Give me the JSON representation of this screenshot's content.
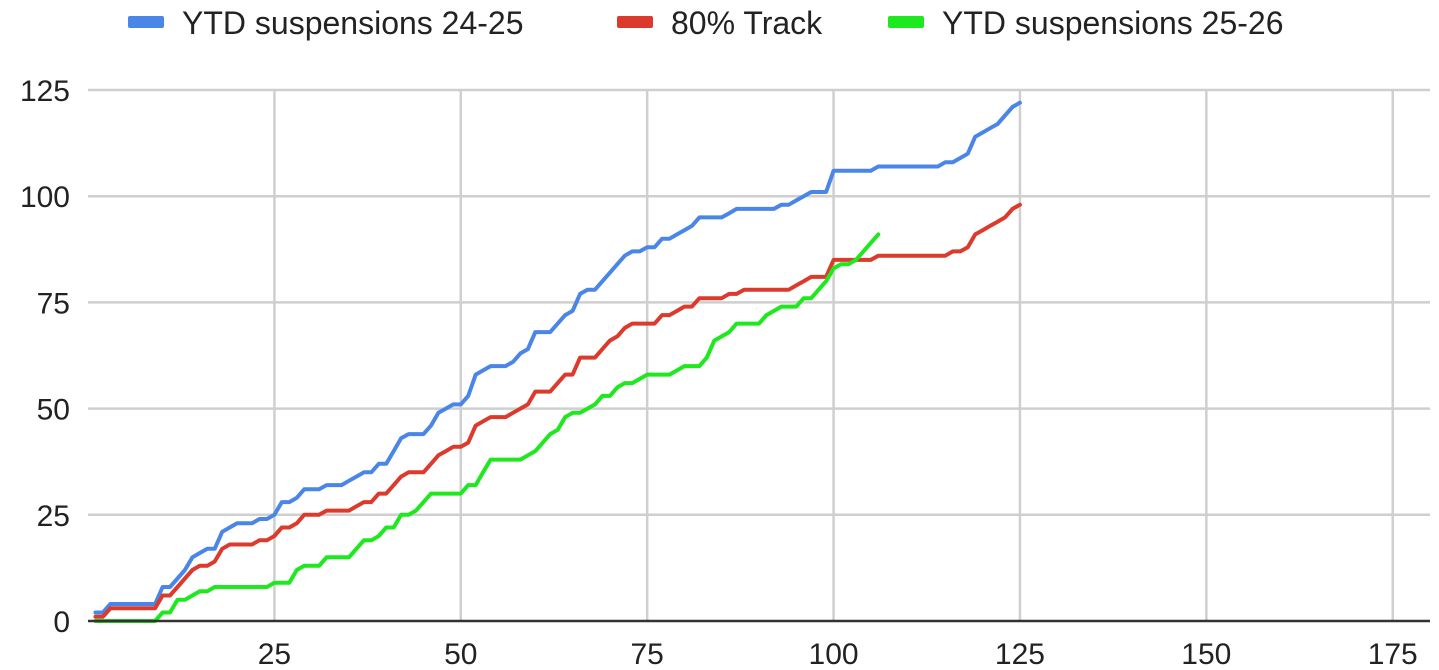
{
  "chart_data": {
    "type": "line",
    "title": "",
    "xlabel": "",
    "ylabel": "",
    "xlim": [
      0,
      180
    ],
    "ylim": [
      0,
      125
    ],
    "x_ticks": [
      25,
      50,
      75,
      100,
      125,
      150,
      175
    ],
    "y_ticks": [
      0,
      25,
      50,
      75,
      100,
      125
    ],
    "x_tick_labels": [
      "25",
      "50",
      "75",
      "100",
      "125",
      "150",
      "175"
    ],
    "y_tick_labels": [
      "0",
      "25",
      "50",
      "75",
      "100",
      "125"
    ],
    "grid": "vertical and horizontal",
    "legend_position": "top",
    "series": [
      {
        "name": "YTD suspensions 24-25",
        "color": "#4a86e8",
        "points": [
          [
            1,
            2
          ],
          [
            2,
            2
          ],
          [
            3,
            4
          ],
          [
            5,
            4
          ],
          [
            7,
            4
          ],
          [
            9,
            4
          ],
          [
            10,
            8
          ],
          [
            11,
            8
          ],
          [
            12,
            10
          ],
          [
            13,
            12
          ],
          [
            14,
            15
          ],
          [
            15,
            16
          ],
          [
            16,
            17
          ],
          [
            17,
            17
          ],
          [
            18,
            21
          ],
          [
            19,
            22
          ],
          [
            20,
            23
          ],
          [
            22,
            23
          ],
          [
            23,
            24
          ],
          [
            24,
            24
          ],
          [
            25,
            25
          ],
          [
            26,
            28
          ],
          [
            27,
            28
          ],
          [
            28,
            29
          ],
          [
            29,
            31
          ],
          [
            30,
            31
          ],
          [
            31,
            31
          ],
          [
            32,
            32
          ],
          [
            34,
            32
          ],
          [
            35,
            33
          ],
          [
            36,
            34
          ],
          [
            37,
            35
          ],
          [
            38,
            35
          ],
          [
            39,
            37
          ],
          [
            40,
            37
          ],
          [
            41,
            40
          ],
          [
            42,
            43
          ],
          [
            43,
            44
          ],
          [
            44,
            44
          ],
          [
            45,
            44
          ],
          [
            46,
            46
          ],
          [
            47,
            49
          ],
          [
            48,
            50
          ],
          [
            49,
            51
          ],
          [
            50,
            51
          ],
          [
            51,
            53
          ],
          [
            52,
            58
          ],
          [
            53,
            59
          ],
          [
            54,
            60
          ],
          [
            55,
            60
          ],
          [
            56,
            60
          ],
          [
            57,
            61
          ],
          [
            58,
            63
          ],
          [
            59,
            64
          ],
          [
            60,
            68
          ],
          [
            61,
            68
          ],
          [
            62,
            68
          ],
          [
            63,
            70
          ],
          [
            64,
            72
          ],
          [
            65,
            73
          ],
          [
            66,
            77
          ],
          [
            67,
            78
          ],
          [
            68,
            78
          ],
          [
            69,
            80
          ],
          [
            70,
            82
          ],
          [
            71,
            84
          ],
          [
            72,
            86
          ],
          [
            73,
            87
          ],
          [
            74,
            87
          ],
          [
            75,
            88
          ],
          [
            76,
            88
          ],
          [
            77,
            90
          ],
          [
            78,
            90
          ],
          [
            79,
            91
          ],
          [
            80,
            92
          ],
          [
            81,
            93
          ],
          [
            82,
            95
          ],
          [
            83,
            95
          ],
          [
            84,
            95
          ],
          [
            85,
            95
          ],
          [
            86,
            96
          ],
          [
            87,
            97
          ],
          [
            88,
            97
          ],
          [
            89,
            97
          ],
          [
            90,
            97
          ],
          [
            91,
            97
          ],
          [
            92,
            97
          ],
          [
            93,
            98
          ],
          [
            94,
            98
          ],
          [
            95,
            99
          ],
          [
            96,
            100
          ],
          [
            97,
            101
          ],
          [
            98,
            101
          ],
          [
            99,
            101
          ],
          [
            100,
            106
          ],
          [
            101,
            106
          ],
          [
            102,
            106
          ],
          [
            103,
            106
          ],
          [
            104,
            106
          ],
          [
            105,
            106
          ],
          [
            106,
            107
          ],
          [
            108,
            107
          ],
          [
            110,
            107
          ],
          [
            112,
            107
          ],
          [
            114,
            107
          ],
          [
            115,
            108
          ],
          [
            116,
            108
          ],
          [
            117,
            109
          ],
          [
            118,
            110
          ],
          [
            119,
            114
          ],
          [
            120,
            115
          ],
          [
            121,
            116
          ],
          [
            122,
            117
          ],
          [
            123,
            119
          ],
          [
            124,
            121
          ],
          [
            125,
            122
          ]
        ]
      },
      {
        "name": "80% Track",
        "color": "#dc3a2c",
        "points": [
          [
            1,
            1
          ],
          [
            2,
            1
          ],
          [
            3,
            3
          ],
          [
            5,
            3
          ],
          [
            7,
            3
          ],
          [
            9,
            3
          ],
          [
            10,
            6
          ],
          [
            11,
            6
          ],
          [
            12,
            8
          ],
          [
            13,
            10
          ],
          [
            14,
            12
          ],
          [
            15,
            13
          ],
          [
            16,
            13
          ],
          [
            17,
            14
          ],
          [
            18,
            17
          ],
          [
            19,
            18
          ],
          [
            20,
            18
          ],
          [
            22,
            18
          ],
          [
            23,
            19
          ],
          [
            24,
            19
          ],
          [
            25,
            20
          ],
          [
            26,
            22
          ],
          [
            27,
            22
          ],
          [
            28,
            23
          ],
          [
            29,
            25
          ],
          [
            30,
            25
          ],
          [
            31,
            25
          ],
          [
            32,
            26
          ],
          [
            34,
            26
          ],
          [
            35,
            26
          ],
          [
            36,
            27
          ],
          [
            37,
            28
          ],
          [
            38,
            28
          ],
          [
            39,
            30
          ],
          [
            40,
            30
          ],
          [
            41,
            32
          ],
          [
            42,
            34
          ],
          [
            43,
            35
          ],
          [
            44,
            35
          ],
          [
            45,
            35
          ],
          [
            46,
            37
          ],
          [
            47,
            39
          ],
          [
            48,
            40
          ],
          [
            49,
            41
          ],
          [
            50,
            41
          ],
          [
            51,
            42
          ],
          [
            52,
            46
          ],
          [
            53,
            47
          ],
          [
            54,
            48
          ],
          [
            55,
            48
          ],
          [
            56,
            48
          ],
          [
            57,
            49
          ],
          [
            58,
            50
          ],
          [
            59,
            51
          ],
          [
            60,
            54
          ],
          [
            61,
            54
          ],
          [
            62,
            54
          ],
          [
            63,
            56
          ],
          [
            64,
            58
          ],
          [
            65,
            58
          ],
          [
            66,
            62
          ],
          [
            67,
            62
          ],
          [
            68,
            62
          ],
          [
            69,
            64
          ],
          [
            70,
            66
          ],
          [
            71,
            67
          ],
          [
            72,
            69
          ],
          [
            73,
            70
          ],
          [
            74,
            70
          ],
          [
            75,
            70
          ],
          [
            76,
            70
          ],
          [
            77,
            72
          ],
          [
            78,
            72
          ],
          [
            79,
            73
          ],
          [
            80,
            74
          ],
          [
            81,
            74
          ],
          [
            82,
            76
          ],
          [
            83,
            76
          ],
          [
            84,
            76
          ],
          [
            85,
            76
          ],
          [
            86,
            77
          ],
          [
            87,
            77
          ],
          [
            88,
            78
          ],
          [
            89,
            78
          ],
          [
            90,
            78
          ],
          [
            91,
            78
          ],
          [
            92,
            78
          ],
          [
            93,
            78
          ],
          [
            94,
            78
          ],
          [
            95,
            79
          ],
          [
            96,
            80
          ],
          [
            97,
            81
          ],
          [
            98,
            81
          ],
          [
            99,
            81
          ],
          [
            100,
            85
          ],
          [
            101,
            85
          ],
          [
            102,
            85
          ],
          [
            103,
            85
          ],
          [
            104,
            85
          ],
          [
            105,
            85
          ],
          [
            106,
            86
          ],
          [
            108,
            86
          ],
          [
            110,
            86
          ],
          [
            112,
            86
          ],
          [
            114,
            86
          ],
          [
            115,
            86
          ],
          [
            116,
            87
          ],
          [
            117,
            87
          ],
          [
            118,
            88
          ],
          [
            119,
            91
          ],
          [
            120,
            92
          ],
          [
            121,
            93
          ],
          [
            122,
            94
          ],
          [
            123,
            95
          ],
          [
            124,
            97
          ],
          [
            125,
            98
          ]
        ]
      },
      {
        "name": "YTD suspensions 25-26",
        "color": "#1ee81e",
        "points": [
          [
            1,
            0
          ],
          [
            3,
            0
          ],
          [
            5,
            0
          ],
          [
            7,
            0
          ],
          [
            9,
            0
          ],
          [
            10,
            2
          ],
          [
            11,
            2
          ],
          [
            12,
            5
          ],
          [
            13,
            5
          ],
          [
            14,
            6
          ],
          [
            15,
            7
          ],
          [
            16,
            7
          ],
          [
            17,
            8
          ],
          [
            18,
            8
          ],
          [
            20,
            8
          ],
          [
            22,
            8
          ],
          [
            24,
            8
          ],
          [
            25,
            9
          ],
          [
            26,
            9
          ],
          [
            27,
            9
          ],
          [
            28,
            12
          ],
          [
            29,
            13
          ],
          [
            30,
            13
          ],
          [
            31,
            13
          ],
          [
            32,
            15
          ],
          [
            33,
            15
          ],
          [
            34,
            15
          ],
          [
            35,
            15
          ],
          [
            36,
            17
          ],
          [
            37,
            19
          ],
          [
            38,
            19
          ],
          [
            39,
            20
          ],
          [
            40,
            22
          ],
          [
            41,
            22
          ],
          [
            42,
            25
          ],
          [
            43,
            25
          ],
          [
            44,
            26
          ],
          [
            45,
            28
          ],
          [
            46,
            30
          ],
          [
            47,
            30
          ],
          [
            48,
            30
          ],
          [
            49,
            30
          ],
          [
            50,
            30
          ],
          [
            51,
            32
          ],
          [
            52,
            32
          ],
          [
            53,
            35
          ],
          [
            54,
            38
          ],
          [
            55,
            38
          ],
          [
            56,
            38
          ],
          [
            57,
            38
          ],
          [
            58,
            38
          ],
          [
            59,
            39
          ],
          [
            60,
            40
          ],
          [
            61,
            42
          ],
          [
            62,
            44
          ],
          [
            63,
            45
          ],
          [
            64,
            48
          ],
          [
            65,
            49
          ],
          [
            66,
            49
          ],
          [
            67,
            50
          ],
          [
            68,
            51
          ],
          [
            69,
            53
          ],
          [
            70,
            53
          ],
          [
            71,
            55
          ],
          [
            72,
            56
          ],
          [
            73,
            56
          ],
          [
            74,
            57
          ],
          [
            75,
            58
          ],
          [
            76,
            58
          ],
          [
            77,
            58
          ],
          [
            78,
            58
          ],
          [
            79,
            59
          ],
          [
            80,
            60
          ],
          [
            81,
            60
          ],
          [
            82,
            60
          ],
          [
            83,
            62
          ],
          [
            84,
            66
          ],
          [
            85,
            67
          ],
          [
            86,
            68
          ],
          [
            87,
            70
          ],
          [
            88,
            70
          ],
          [
            89,
            70
          ],
          [
            90,
            70
          ],
          [
            91,
            72
          ],
          [
            92,
            73
          ],
          [
            93,
            74
          ],
          [
            94,
            74
          ],
          [
            95,
            74
          ],
          [
            96,
            76
          ],
          [
            97,
            76
          ],
          [
            98,
            78
          ],
          [
            99,
            80
          ],
          [
            100,
            83
          ],
          [
            101,
            84
          ],
          [
            102,
            84
          ],
          [
            103,
            85
          ],
          [
            104,
            87
          ],
          [
            105,
            89
          ],
          [
            106,
            91
          ]
        ]
      }
    ]
  }
}
